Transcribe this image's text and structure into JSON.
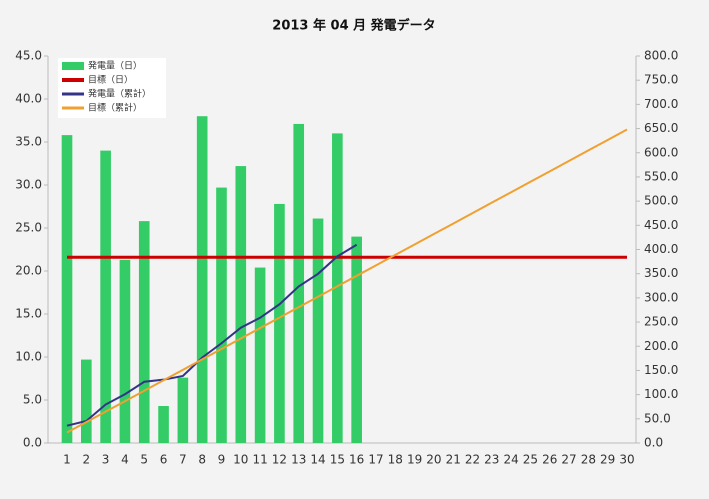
{
  "chart_data": {
    "type": "bar",
    "title": "2013 年 04 月 発電データ",
    "categories": [
      1,
      2,
      3,
      4,
      5,
      6,
      7,
      8,
      9,
      10,
      11,
      12,
      13,
      14,
      15,
      16,
      17,
      18,
      19,
      20,
      21,
      22,
      23,
      24,
      25,
      26,
      27,
      28,
      29,
      30
    ],
    "series": [
      {
        "name": "発電量（日）",
        "type": "bar",
        "color": "#33cc66",
        "values": [
          35.8,
          9.7,
          34,
          21.3,
          25.8,
          4.3,
          7.6,
          38,
          29.7,
          32.2,
          20.4,
          27.8,
          37.1,
          26.1,
          36,
          24,
          null,
          null,
          null,
          null,
          null,
          null,
          null,
          null,
          null,
          null,
          null,
          null,
          null,
          null
        ]
      },
      {
        "name": "目標（日）",
        "type": "line",
        "color": "#cc0000",
        "width": 3,
        "values": [
          21.6,
          21.6,
          21.6,
          21.6,
          21.6,
          21.6,
          21.6,
          21.6,
          21.6,
          21.6,
          21.6,
          21.6,
          21.6,
          21.6,
          21.6,
          21.6,
          21.6,
          21.6,
          21.6,
          21.6,
          21.6,
          21.6,
          21.6,
          21.6,
          21.6,
          21.6,
          21.6,
          21.6,
          21.6,
          21.6
        ]
      },
      {
        "name": "発電量（累計）",
        "type": "line",
        "axis": "y2",
        "color": "#333388",
        "width": 2,
        "values": [
          35.8,
          45.5,
          79.5,
          100.8,
          126.6,
          130.9,
          138.5,
          176.5,
          206.2,
          238.4,
          258.8,
          286.6,
          323.7,
          349.8,
          385.8,
          409.8,
          null,
          null,
          null,
          null,
          null,
          null,
          null,
          null,
          null,
          null,
          null,
          null,
          null,
          null
        ]
      },
      {
        "name": "目標（累計）",
        "type": "line",
        "axis": "y2",
        "color": "#f0a030",
        "width": 2,
        "values": [
          21.6,
          43.2,
          64.8,
          86.4,
          108,
          129.6,
          151.2,
          172.8,
          194.4,
          216,
          237.6,
          259.2,
          280.8,
          302.4,
          324,
          345.6,
          367.2,
          388.8,
          410.4,
          432,
          453.6,
          475.2,
          496.8,
          518.4,
          540,
          561.6,
          583.2,
          604.8,
          626.4,
          648
        ]
      }
    ],
    "ylim": [
      0,
      45
    ],
    "yticks": [
      {
        "value": 0,
        "label": "0.0"
      },
      {
        "value": 5,
        "label": "5.0"
      },
      {
        "value": 10,
        "label": "10.0"
      },
      {
        "value": 15,
        "label": "15.0"
      },
      {
        "value": 20,
        "label": "20.0"
      },
      {
        "value": 25,
        "label": "25.0"
      },
      {
        "value": 30,
        "label": "30.0"
      },
      {
        "value": 35,
        "label": "35.0"
      },
      {
        "value": 40,
        "label": "40.0"
      },
      {
        "value": 45,
        "label": "45.0"
      }
    ],
    "y2lim": [
      0,
      800
    ],
    "y2ticks": [
      {
        "value": 0,
        "label": "0.0"
      },
      {
        "value": 50,
        "label": "50.0"
      },
      {
        "value": 100,
        "label": "100.0"
      },
      {
        "value": 150,
        "label": "150.0"
      },
      {
        "value": 200,
        "label": "200.0"
      },
      {
        "value": 250,
        "label": "250.0"
      },
      {
        "value": 300,
        "label": "300.0"
      },
      {
        "value": 350,
        "label": "350.0"
      },
      {
        "value": 400,
        "label": "400.0"
      },
      {
        "value": 450,
        "label": "450.0"
      },
      {
        "value": 500,
        "label": "500.0"
      },
      {
        "value": 550,
        "label": "550.0"
      },
      {
        "value": 600,
        "label": "600.0"
      },
      {
        "value": 650,
        "label": "650.0"
      },
      {
        "value": 700,
        "label": "700.0"
      },
      {
        "value": 750,
        "label": "750.0"
      },
      {
        "value": 800,
        "label": "800.0"
      }
    ],
    "legend": "top-left"
  }
}
